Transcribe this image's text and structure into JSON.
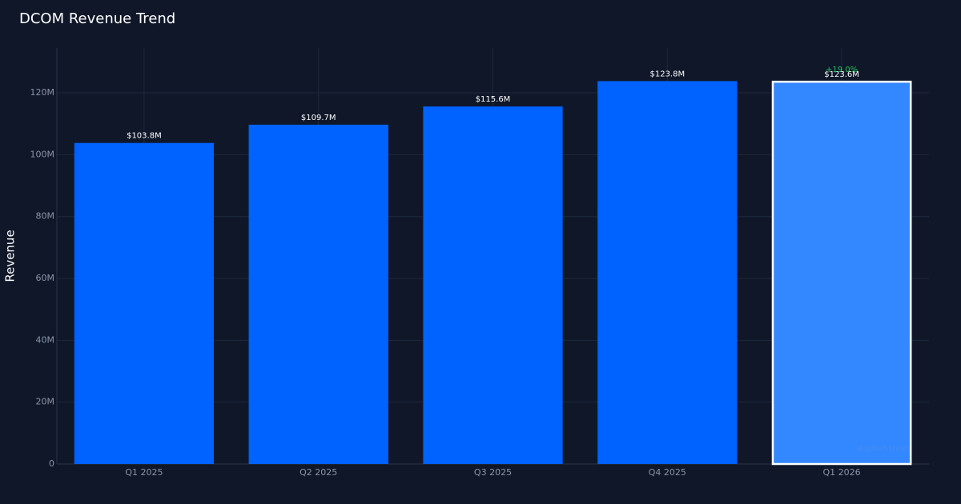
{
  "chart_data": {
    "type": "bar",
    "title": "DCOM Revenue Trend",
    "y_label": "Revenue",
    "categories": [
      "Q1 2025",
      "Q2 2025",
      "Q3 2025",
      "Q4 2025",
      "Q1 2026"
    ],
    "values": [
      103800000,
      109700000,
      115600000,
      123800000,
      123600000
    ],
    "value_labels": [
      "$103.8M",
      "$109.7M",
      "$115.6M",
      "$123.8M",
      "$123.6M"
    ],
    "colors": [
      "#0062ff",
      "#0062ff",
      "#0062ff",
      "#0062ff",
      "#3388ff"
    ],
    "ylim": [
      0,
      134500000
    ],
    "yticks": [
      0,
      {
        "value": 20000000,
        "label": "20M"
      },
      {
        "value": 40000000,
        "label": "40M"
      },
      {
        "value": 60000000,
        "label": "60M"
      },
      {
        "value": 80000000,
        "label": "80M"
      },
      {
        "value": 100000000,
        "label": "100M"
      },
      {
        "value": 120000000,
        "label": "120M"
      }
    ],
    "grid": true,
    "annotation": "+19.0%",
    "annotation_color": "#22c55e",
    "watermark": "AlphaStreet"
  }
}
